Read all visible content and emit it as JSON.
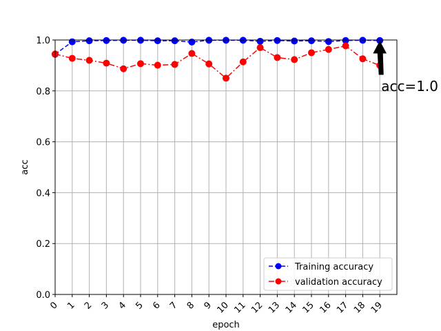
{
  "chart_data": {
    "type": "line",
    "x": [
      0,
      1,
      2,
      3,
      4,
      5,
      6,
      7,
      8,
      9,
      10,
      11,
      12,
      13,
      14,
      15,
      16,
      17,
      18,
      19
    ],
    "xticklabels": [
      "0",
      "1",
      "2",
      "3",
      "4",
      "5",
      "6",
      "7",
      "8",
      "9",
      "10",
      "11",
      "12",
      "13",
      "14",
      "15",
      "16",
      "17",
      "18",
      "19"
    ],
    "yticklabels": [
      "0.0",
      "0.2",
      "0.4",
      "0.6",
      "0.8",
      "1.0"
    ],
    "yticks": [
      0.0,
      0.2,
      0.4,
      0.6,
      0.8,
      1.0
    ],
    "xlim": [
      0,
      20
    ],
    "ylim": [
      0.0,
      1.0
    ],
    "xlabel": "epoch",
    "ylabel": "acc",
    "grid": true,
    "legend_position": "lower-right",
    "series": [
      {
        "name": "Training accuracy",
        "color": "#0000ff",
        "linestyle": "dashed",
        "marker": "circle",
        "values": [
          0.944,
          0.993,
          0.997,
          0.998,
          0.999,
          0.999,
          0.997,
          0.997,
          0.992,
          0.999,
          0.999,
          0.999,
          0.995,
          0.998,
          0.996,
          0.997,
          0.994,
          0.998,
          0.999,
          0.998
        ]
      },
      {
        "name": "validation accuracy",
        "color": "#ff0000",
        "linestyle": "dashdot",
        "marker": "circle",
        "values": [
          0.945,
          0.928,
          0.92,
          0.909,
          0.887,
          0.907,
          0.901,
          0.904,
          0.947,
          0.906,
          0.85,
          0.914,
          0.97,
          0.931,
          0.923,
          0.95,
          0.963,
          0.977,
          0.926,
          0.9
        ]
      }
    ],
    "annotation": {
      "text": "acc=1.0",
      "x": 19,
      "y": 1.0
    }
  }
}
